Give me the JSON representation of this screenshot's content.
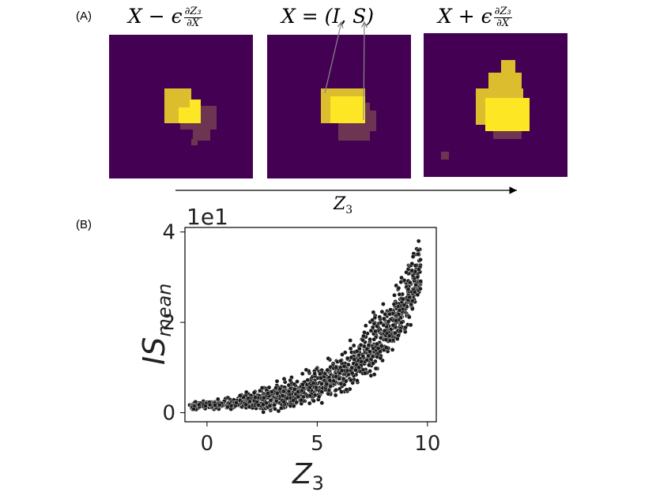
{
  "panel_a": {
    "label": "(A)",
    "images": [
      {
        "title_main": "X − ϵ",
        "frac_num": "∂Z₃",
        "frac_den": "∂X"
      },
      {
        "title_main": "X = (I, S)"
      },
      {
        "title_main": "X + ϵ",
        "frac_num": "∂Z₃",
        "frac_den": "∂X"
      }
    ],
    "arrow_label_base": "Z",
    "arrow_label_sub": "3"
  },
  "panel_b": {
    "label": "(B)"
  },
  "colors": {
    "background": "#440154",
    "bright": "#fde725",
    "mid": "#dcbd2e",
    "shadow": "#6e3553",
    "points": "#1a1a1a"
  },
  "chart_data": {
    "type": "scatter",
    "xlabel_base": "Z",
    "xlabel_sub": "3",
    "ylabel_base": "IS",
    "ylabel_sub": "mean",
    "offset_text": "1e1",
    "xlim": [
      -1,
      10.4
    ],
    "ylim": [
      -0.2,
      4.1
    ],
    "xticks": [
      0,
      5,
      10
    ],
    "yticks": [
      0,
      2,
      4
    ],
    "xtick_labels": [
      "0",
      "5",
      "10"
    ],
    "ytick_labels": [
      "0",
      "2",
      "4"
    ],
    "trend": "y ≈ 0.1 + 0.07·exp(0.39·x) with scatter",
    "sample_points": [
      {
        "x": -0.6,
        "y": 0.08
      },
      {
        "x": 0.5,
        "y": 0.3
      },
      {
        "x": 1.5,
        "y": 0.38
      },
      {
        "x": 2.5,
        "y": 0.55
      },
      {
        "x": 3.5,
        "y": 0.75
      },
      {
        "x": 4.5,
        "y": 0.95
      },
      {
        "x": 5.5,
        "y": 1.2
      },
      {
        "x": 6.5,
        "y": 1.6
      },
      {
        "x": 7.5,
        "y": 2.05
      },
      {
        "x": 8.5,
        "y": 2.6
      },
      {
        "x": 9.3,
        "y": 3.3
      },
      {
        "x": 9.6,
        "y": 3.8
      }
    ]
  }
}
